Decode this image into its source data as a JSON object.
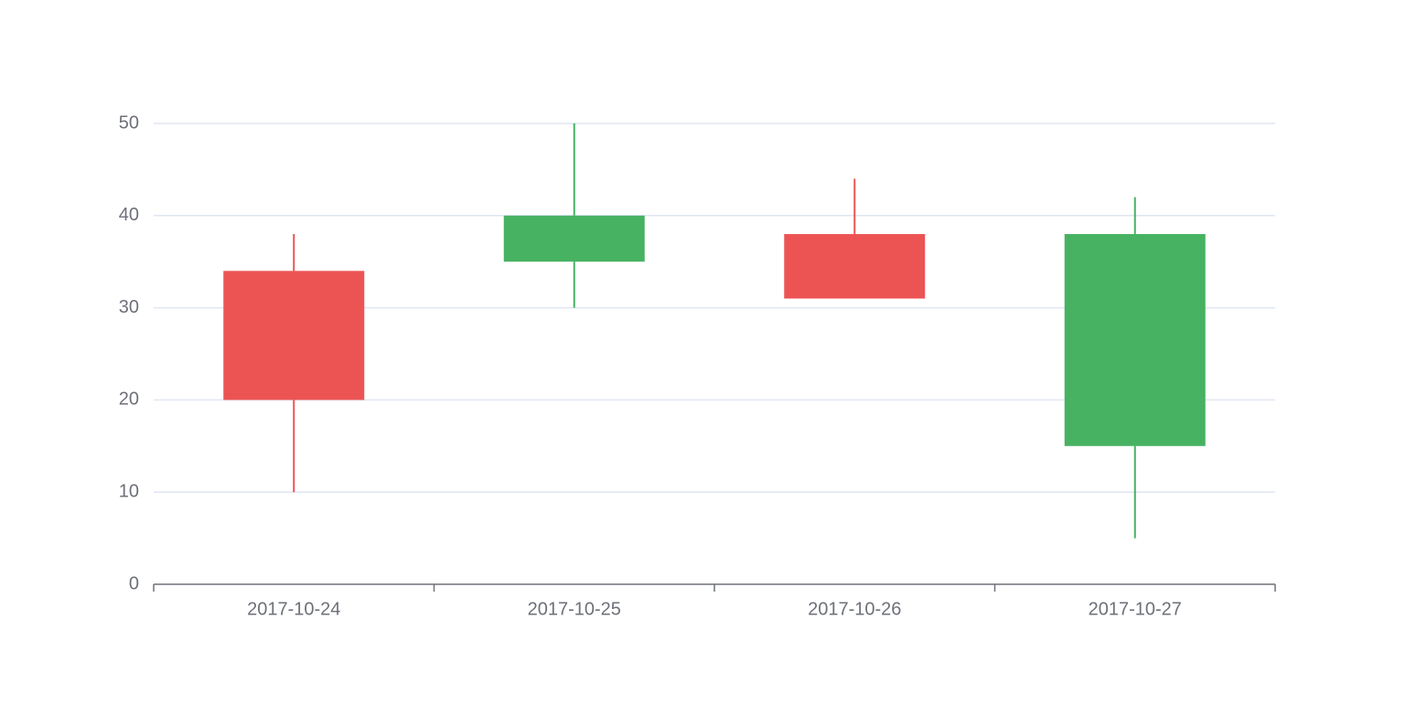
{
  "chart_data": {
    "type": "candlestick",
    "categories": [
      "2017-10-24",
      "2017-10-25",
      "2017-10-26",
      "2017-10-27"
    ],
    "open": [
      20,
      40,
      31,
      38
    ],
    "close": [
      34,
      35,
      38,
      15
    ],
    "low": [
      10,
      30,
      31,
      5
    ],
    "high": [
      38,
      50,
      44,
      42
    ],
    "up_color": "#ec5454",
    "down_color": "#47b262",
    "ylim": [
      0,
      50
    ],
    "yticks": [
      0,
      10,
      20,
      30,
      40,
      50
    ],
    "grid": true
  }
}
